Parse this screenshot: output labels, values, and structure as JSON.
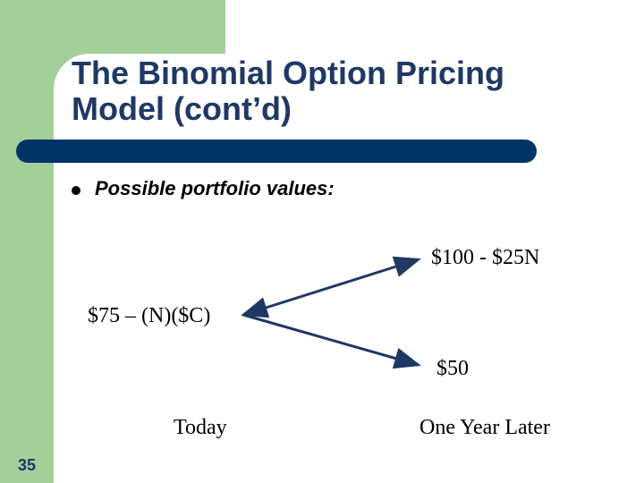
{
  "slide": {
    "title": "The Binomial Option Pricing\nModel (cont’d)",
    "bullet": "Possible portfolio values:",
    "number": "35"
  },
  "tree": {
    "root": "$75 – (N)($C)",
    "up": "$100 - $25N",
    "down": "$50",
    "label_today": "Today",
    "label_later": "One Year Later"
  },
  "colors": {
    "accent_green": "#a3cf9b",
    "title_color": "#1f3864",
    "bar_color": "#003366",
    "arrow_color": "#1f3864"
  }
}
